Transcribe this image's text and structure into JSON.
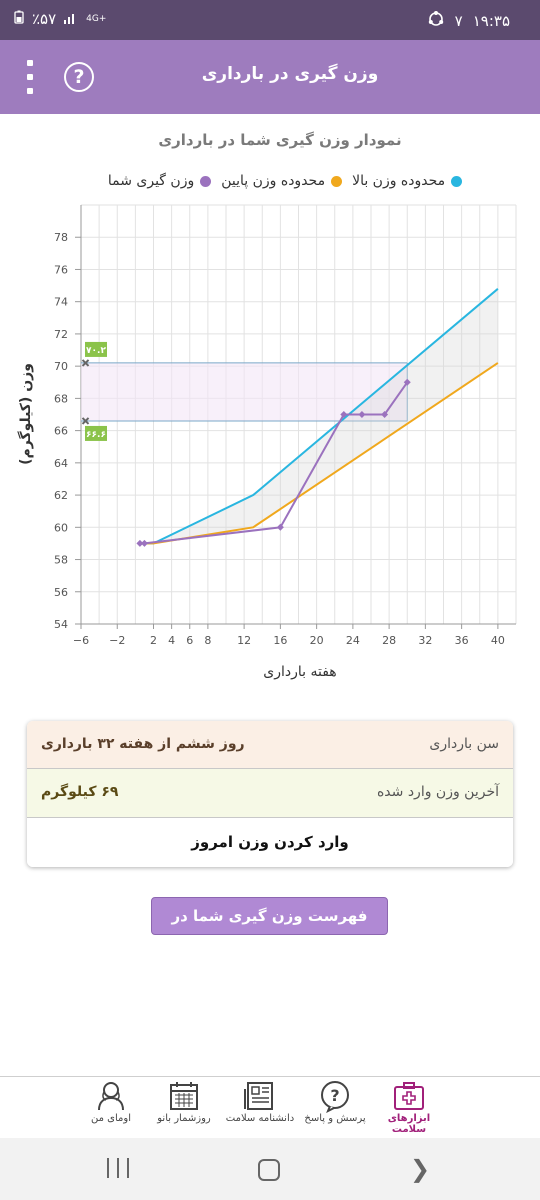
{
  "status_bar": {
    "time": "۱۹:۳۵",
    "notif_count": "۷",
    "battery": "٪۵۷",
    "network": "4G+"
  },
  "header": {
    "title": "وزن گیری در بارداری",
    "help_symbol": "?"
  },
  "chart_data": {
    "type": "line",
    "title": "نمودار وزن گیری شما در بارداری",
    "xlabel": "هفته بارداری",
    "ylabel": "وزن (کیلوگرم)",
    "xlim": [
      -6,
      42
    ],
    "ylim": [
      54,
      80
    ],
    "x_ticks": [
      -6,
      -2,
      2,
      4,
      6,
      8,
      12,
      16,
      20,
      24,
      28,
      32,
      36,
      40
    ],
    "y_ticks": [
      54,
      56,
      58,
      60,
      62,
      64,
      66,
      68,
      70,
      72,
      74,
      76,
      78
    ],
    "series": [
      {
        "name": "محدوده وزن بالا",
        "color": "#29b6e0",
        "x": [
          1,
          2,
          13,
          40
        ],
        "y": [
          59,
          59,
          62,
          74.8
        ]
      },
      {
        "name": "محدوده وزن پایین",
        "color": "#f0a81d",
        "x": [
          1,
          2,
          13,
          40
        ],
        "y": [
          59,
          59,
          60,
          70.2
        ]
      },
      {
        "name": "وزن گیری شما",
        "color": "#9b72be",
        "x": [
          0.5,
          1,
          16,
          23,
          25,
          27.5,
          30
        ],
        "y": [
          59,
          59,
          60,
          67,
          67,
          67,
          69
        ]
      }
    ],
    "reference_band": {
      "low": 66.6,
      "high": 70.2,
      "low_label": "۶۶.۶",
      "high_label": "۷۰.۲"
    }
  },
  "summary": {
    "age_label": "سن بارداری",
    "age_value": "روز ششم از هفته ۳۲ بارداری",
    "last_weight_label": "آخرین وزن وارد شده",
    "last_weight_value": "۶۹ کیلوگرم",
    "enter_today": "وارد کردن وزن امروز"
  },
  "list_button": "فهرست وزن گیری شما در بارداری",
  "bottom_nav": {
    "health_tools": "ابزارهای سلامت",
    "qa": "پرسش و پاسخ",
    "encyclopedia": "دانشنامه سلامت",
    "calendar": "روزشمار بانو",
    "my_uma": "اومای من"
  }
}
